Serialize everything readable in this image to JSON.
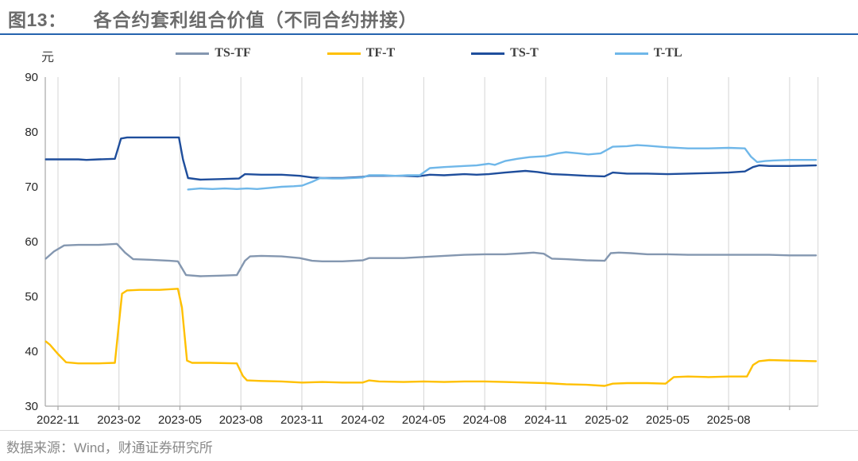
{
  "figure": {
    "label": "图13：",
    "title": "各合约套利组合价值（不同合约拼接）",
    "unit": "元",
    "source": "数据来源：Wind，财通证券研究所"
  },
  "colors": {
    "title_text": "#6b6b6b",
    "title_rule": "#2563ae",
    "axis_line": "#a6a6a6",
    "gridline": "#dcdcdc",
    "tick_text": "#262626",
    "source_text": "#8a8a8a"
  },
  "chart_data": {
    "type": "line",
    "title": "各合约套利组合价值（不同合约拼接）",
    "xlabel": "",
    "ylabel": "元",
    "ylim": [
      30,
      90
    ],
    "yticks": [
      90,
      80,
      70,
      60,
      50,
      40,
      30
    ],
    "grid": "vertical-only",
    "legend_position": "top-center",
    "xtick_labels": [
      "2022-11",
      "2023-02",
      "2023-05",
      "2023-08",
      "2023-11",
      "2024-02",
      "2024-05",
      "2024-08",
      "2024-11",
      "2025-02",
      "2025-05",
      "2025-08"
    ],
    "xtick_months": [
      0,
      3,
      6,
      9,
      12,
      15,
      18,
      21,
      24,
      27,
      30,
      33
    ],
    "extra_gridline_months": [
      36
    ],
    "x_domain_months": [
      -0.6,
      37.4
    ],
    "series": [
      {
        "name": "TS-TF",
        "color": "#8497b0",
        "points": [
          [
            -0.6,
            56.9
          ],
          [
            -0.2,
            58.2
          ],
          [
            0.3,
            59.3
          ],
          [
            1,
            59.4
          ],
          [
            2,
            59.4
          ],
          [
            2.9,
            59.6
          ],
          [
            3.3,
            58.0
          ],
          [
            3.7,
            56.8
          ],
          [
            4.5,
            56.7
          ],
          [
            5.5,
            56.5
          ],
          [
            5.9,
            56.4
          ],
          [
            6.3,
            53.9
          ],
          [
            7,
            53.7
          ],
          [
            8,
            53.8
          ],
          [
            8.8,
            53.9
          ],
          [
            9.2,
            56.5
          ],
          [
            9.45,
            57.3
          ],
          [
            10,
            57.4
          ],
          [
            11,
            57.3
          ],
          [
            11.9,
            57.0
          ],
          [
            12.5,
            56.5
          ],
          [
            13,
            56.4
          ],
          [
            14,
            56.4
          ],
          [
            15,
            56.6
          ],
          [
            15.3,
            57.0
          ],
          [
            16,
            57.0
          ],
          [
            17,
            57.0
          ],
          [
            18,
            57.2
          ],
          [
            19,
            57.4
          ],
          [
            20,
            57.6
          ],
          [
            21,
            57.7
          ],
          [
            22,
            57.7
          ],
          [
            23,
            57.9
          ],
          [
            23.4,
            58.0
          ],
          [
            23.9,
            57.8
          ],
          [
            24.3,
            56.9
          ],
          [
            25,
            56.8
          ],
          [
            26,
            56.6
          ],
          [
            26.9,
            56.5
          ],
          [
            27.2,
            57.9
          ],
          [
            27.6,
            58.0
          ],
          [
            28.2,
            57.9
          ],
          [
            29,
            57.7
          ],
          [
            30,
            57.7
          ],
          [
            31,
            57.6
          ],
          [
            32,
            57.6
          ],
          [
            33,
            57.6
          ],
          [
            34,
            57.6
          ],
          [
            35,
            57.6
          ],
          [
            36,
            57.5
          ],
          [
            37.3,
            57.5
          ]
        ]
      },
      {
        "name": "TF-T",
        "color": "#ffc000",
        "points": [
          [
            -0.6,
            41.8
          ],
          [
            -0.4,
            41.2
          ],
          [
            0,
            39.5
          ],
          [
            0.4,
            38.0
          ],
          [
            1,
            37.8
          ],
          [
            2,
            37.8
          ],
          [
            2.8,
            37.9
          ],
          [
            3.15,
            50.5
          ],
          [
            3.4,
            51.1
          ],
          [
            4,
            51.2
          ],
          [
            5,
            51.2
          ],
          [
            5.9,
            51.4
          ],
          [
            6.1,
            48.0
          ],
          [
            6.35,
            38.3
          ],
          [
            6.6,
            37.9
          ],
          [
            7.5,
            37.9
          ],
          [
            8.8,
            37.8
          ],
          [
            9.1,
            35.5
          ],
          [
            9.3,
            34.7
          ],
          [
            10,
            34.6
          ],
          [
            11,
            34.5
          ],
          [
            12,
            34.3
          ],
          [
            13,
            34.4
          ],
          [
            14,
            34.3
          ],
          [
            15,
            34.3
          ],
          [
            15.3,
            34.7
          ],
          [
            15.8,
            34.5
          ],
          [
            17,
            34.4
          ],
          [
            18,
            34.5
          ],
          [
            19,
            34.4
          ],
          [
            20,
            34.5
          ],
          [
            21,
            34.5
          ],
          [
            22,
            34.4
          ],
          [
            23,
            34.3
          ],
          [
            24,
            34.2
          ],
          [
            25,
            34.0
          ],
          [
            26,
            33.9
          ],
          [
            26.9,
            33.7
          ],
          [
            27.3,
            34.1
          ],
          [
            28,
            34.2
          ],
          [
            29,
            34.2
          ],
          [
            29.9,
            34.1
          ],
          [
            30.3,
            35.3
          ],
          [
            31,
            35.4
          ],
          [
            32,
            35.3
          ],
          [
            33,
            35.4
          ],
          [
            33.9,
            35.4
          ],
          [
            34.2,
            37.5
          ],
          [
            34.5,
            38.2
          ],
          [
            35,
            38.4
          ],
          [
            36,
            38.3
          ],
          [
            37.3,
            38.2
          ]
        ]
      },
      {
        "name": "TS-T",
        "color": "#1f4e9c",
        "points": [
          [
            -0.6,
            75.0
          ],
          [
            0,
            75.0
          ],
          [
            1,
            75.0
          ],
          [
            1.4,
            74.9
          ],
          [
            2,
            75.0
          ],
          [
            2.8,
            75.1
          ],
          [
            3.1,
            78.8
          ],
          [
            3.4,
            79.0
          ],
          [
            4,
            79.0
          ],
          [
            5,
            79.0
          ],
          [
            5.95,
            79.0
          ],
          [
            6.15,
            75.0
          ],
          [
            6.4,
            71.6
          ],
          [
            7,
            71.3
          ],
          [
            8,
            71.4
          ],
          [
            8.9,
            71.5
          ],
          [
            9.2,
            72.3
          ],
          [
            10,
            72.2
          ],
          [
            11,
            72.2
          ],
          [
            11.9,
            72.0
          ],
          [
            12.5,
            71.7
          ],
          [
            13,
            71.6
          ],
          [
            14,
            71.6
          ],
          [
            15,
            71.8
          ],
          [
            15.3,
            72.0
          ],
          [
            16,
            72.0
          ],
          [
            17,
            72.0
          ],
          [
            17.7,
            71.9
          ],
          [
            18.3,
            72.2
          ],
          [
            19,
            72.1
          ],
          [
            20,
            72.3
          ],
          [
            20.6,
            72.2
          ],
          [
            21.2,
            72.3
          ],
          [
            22,
            72.6
          ],
          [
            23,
            72.9
          ],
          [
            23.6,
            72.7
          ],
          [
            24.3,
            72.3
          ],
          [
            25,
            72.2
          ],
          [
            26,
            72.0
          ],
          [
            26.9,
            71.9
          ],
          [
            27.3,
            72.6
          ],
          [
            28,
            72.4
          ],
          [
            29,
            72.4
          ],
          [
            30,
            72.3
          ],
          [
            31,
            72.4
          ],
          [
            32,
            72.5
          ],
          [
            33,
            72.6
          ],
          [
            33.8,
            72.8
          ],
          [
            34.2,
            73.6
          ],
          [
            34.5,
            73.9
          ],
          [
            35,
            73.8
          ],
          [
            36,
            73.8
          ],
          [
            37.3,
            73.9
          ]
        ]
      },
      {
        "name": "T-TL",
        "color": "#6fb7e9",
        "points": [
          [
            6.4,
            69.5
          ],
          [
            7,
            69.7
          ],
          [
            7.6,
            69.6
          ],
          [
            8.2,
            69.7
          ],
          [
            8.8,
            69.6
          ],
          [
            9.3,
            69.7
          ],
          [
            9.8,
            69.6
          ],
          [
            10.4,
            69.8
          ],
          [
            11,
            70.0
          ],
          [
            11.6,
            70.1
          ],
          [
            12,
            70.2
          ],
          [
            12.5,
            70.9
          ],
          [
            12.9,
            71.6
          ],
          [
            13.5,
            71.5
          ],
          [
            14,
            71.5
          ],
          [
            15,
            71.7
          ],
          [
            15.3,
            72.1
          ],
          [
            16,
            72.1
          ],
          [
            16.6,
            72.0
          ],
          [
            17.2,
            72.1
          ],
          [
            17.8,
            72.1
          ],
          [
            18.3,
            73.4
          ],
          [
            19,
            73.6
          ],
          [
            20,
            73.8
          ],
          [
            20.6,
            73.9
          ],
          [
            21.2,
            74.2
          ],
          [
            21.5,
            74.0
          ],
          [
            22,
            74.7
          ],
          [
            22.6,
            75.1
          ],
          [
            23.2,
            75.4
          ],
          [
            24,
            75.6
          ],
          [
            24.6,
            76.1
          ],
          [
            25,
            76.3
          ],
          [
            25.6,
            76.1
          ],
          [
            26.1,
            75.9
          ],
          [
            26.7,
            76.1
          ],
          [
            27.3,
            77.3
          ],
          [
            28,
            77.4
          ],
          [
            28.5,
            77.6
          ],
          [
            29,
            77.5
          ],
          [
            29.6,
            77.3
          ],
          [
            30,
            77.2
          ],
          [
            31,
            77.0
          ],
          [
            32,
            77.0
          ],
          [
            33,
            77.1
          ],
          [
            33.8,
            77.0
          ],
          [
            34.1,
            75.5
          ],
          [
            34.4,
            74.5
          ],
          [
            34.8,
            74.7
          ],
          [
            35.2,
            74.8
          ],
          [
            36,
            74.9
          ],
          [
            37.3,
            74.9
          ]
        ]
      }
    ]
  }
}
